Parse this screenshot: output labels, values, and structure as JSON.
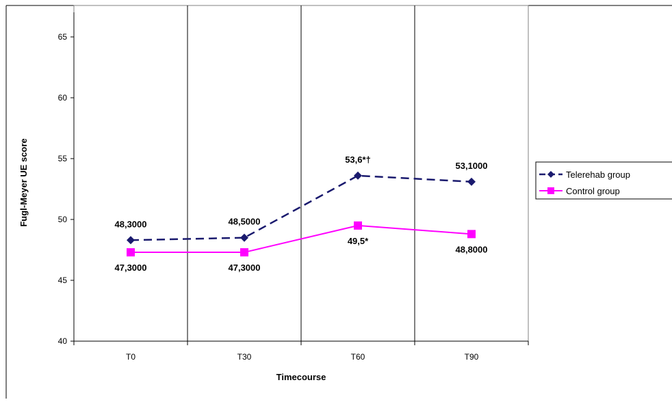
{
  "chart_data": {
    "type": "line",
    "title": "",
    "xlabel": "Timecourse",
    "ylabel": "Fugl-Meyer UE score",
    "categories": [
      "T0",
      "T30",
      "T60",
      "T90"
    ],
    "yticks": [
      "40",
      "45",
      "50",
      "55",
      "60",
      "65"
    ],
    "ylim": [
      40,
      65
    ],
    "grid": "vertical lines between categories",
    "legend_position": "right",
    "series": [
      {
        "name": "Telerehab group",
        "values": [
          48.3,
          48.5,
          53.6,
          53.1
        ],
        "labels": [
          "48,3000",
          "48,5000",
          "53,6*†",
          "53,1000"
        ],
        "color": "#1a1a6e",
        "line_style": "dashed",
        "marker": "diamond"
      },
      {
        "name": "Control group",
        "values": [
          47.3,
          47.3,
          49.5,
          48.8
        ],
        "labels": [
          "47,3000",
          "47,3000",
          "49,5*",
          "48,8000"
        ],
        "color": "#ff00ff",
        "line_style": "solid",
        "marker": "square"
      }
    ]
  }
}
